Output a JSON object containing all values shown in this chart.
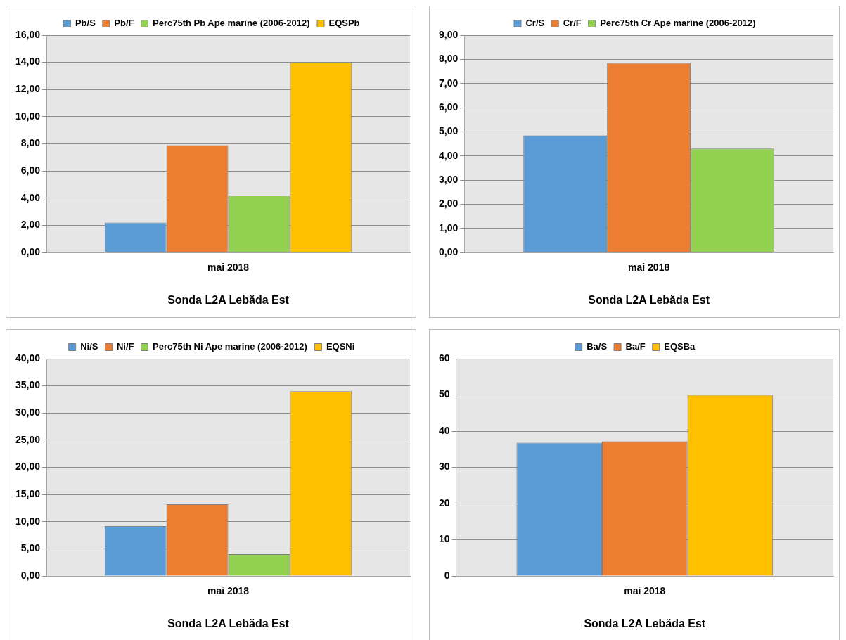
{
  "chart_data": [
    {
      "type": "bar",
      "categories": [
        "mai 2018"
      ],
      "xlabel": "Sonda L2A Lebăda Est",
      "legend": "top",
      "grid": "y",
      "ylim": [
        0,
        16
      ],
      "yticks": [
        {
          "value": 0,
          "label": "0,00"
        },
        {
          "value": 2,
          "label": "2,00"
        },
        {
          "value": 4,
          "label": "4,00"
        },
        {
          "value": 6,
          "label": "6,00"
        },
        {
          "value": 8,
          "label": "8,00"
        },
        {
          "value": 10,
          "label": "10,00"
        },
        {
          "value": 12,
          "label": "12,00"
        },
        {
          "value": 14,
          "label": "14,00"
        },
        {
          "value": 16,
          "label": "16,00"
        }
      ],
      "series": [
        {
          "name": "Pb/S",
          "color": "#5b9bd5",
          "values": [
            2.2
          ]
        },
        {
          "name": "Pb/F",
          "color": "#ed7d31",
          "values": [
            7.9
          ]
        },
        {
          "name": "Perc75th Pb Ape marine (2006-2012)",
          "color": "#92d050",
          "values": [
            4.2
          ]
        },
        {
          "name": "EQSPb",
          "color": "#ffc000",
          "values": [
            14
          ]
        }
      ]
    },
    {
      "type": "bar",
      "categories": [
        "mai 2018"
      ],
      "xlabel": "Sonda L2A Lebăda Est",
      "legend": "top",
      "grid": "y",
      "ylim": [
        0,
        9
      ],
      "yticks": [
        {
          "value": 0,
          "label": "0,00"
        },
        {
          "value": 1,
          "label": "1,00"
        },
        {
          "value": 2,
          "label": "2,00"
        },
        {
          "value": 3,
          "label": "3,00"
        },
        {
          "value": 4,
          "label": "4,00"
        },
        {
          "value": 5,
          "label": "5,00"
        },
        {
          "value": 6,
          "label": "6,00"
        },
        {
          "value": 7,
          "label": "7,00"
        },
        {
          "value": 8,
          "label": "8,00"
        },
        {
          "value": 9,
          "label": "9,00"
        }
      ],
      "series": [
        {
          "name": "Cr/S",
          "color": "#5b9bd5",
          "values": [
            4.85
          ]
        },
        {
          "name": "Cr/F",
          "color": "#ed7d31",
          "values": [
            7.85
          ]
        },
        {
          "name": "Perc75th Cr Ape marine (2006-2012)",
          "color": "#92d050",
          "values": [
            4.3
          ]
        }
      ]
    },
    {
      "type": "bar",
      "categories": [
        "mai 2018"
      ],
      "xlabel": "Sonda L2A Lebăda Est",
      "legend": "top",
      "grid": "y",
      "ylim": [
        0,
        40
      ],
      "yticks": [
        {
          "value": 0,
          "label": "0,00"
        },
        {
          "value": 5,
          "label": "5,00"
        },
        {
          "value": 10,
          "label": "10,00"
        },
        {
          "value": 15,
          "label": "15,00"
        },
        {
          "value": 20,
          "label": "20,00"
        },
        {
          "value": 25,
          "label": "25,00"
        },
        {
          "value": 30,
          "label": "30,00"
        },
        {
          "value": 35,
          "label": "35,00"
        },
        {
          "value": 40,
          "label": "40,00"
        }
      ],
      "series": [
        {
          "name": "Ni/S",
          "color": "#5b9bd5",
          "values": [
            9.2
          ]
        },
        {
          "name": "Ni/F",
          "color": "#ed7d31",
          "values": [
            13.2
          ]
        },
        {
          "name": "Perc75th Ni Ape marine (2006-2012)",
          "color": "#92d050",
          "values": [
            4
          ]
        },
        {
          "name": "EQSNi",
          "color": "#ffc000",
          "values": [
            34
          ]
        }
      ]
    },
    {
      "type": "bar",
      "categories": [
        "mai 2018"
      ],
      "xlabel": "Sonda L2A Lebăda Est",
      "legend": "top",
      "grid": "y",
      "ylim": [
        0,
        60
      ],
      "yticks": [
        0,
        10,
        20,
        30,
        40,
        50,
        60
      ],
      "series": [
        {
          "name": "Ba/S",
          "color": "#5b9bd5",
          "values": [
            36.8
          ]
        },
        {
          "name": "Ba/F",
          "color": "#ed7d31",
          "values": [
            37.2
          ]
        },
        {
          "name": "EQSBa",
          "color": "#ffc000",
          "values": [
            50
          ]
        }
      ]
    }
  ]
}
